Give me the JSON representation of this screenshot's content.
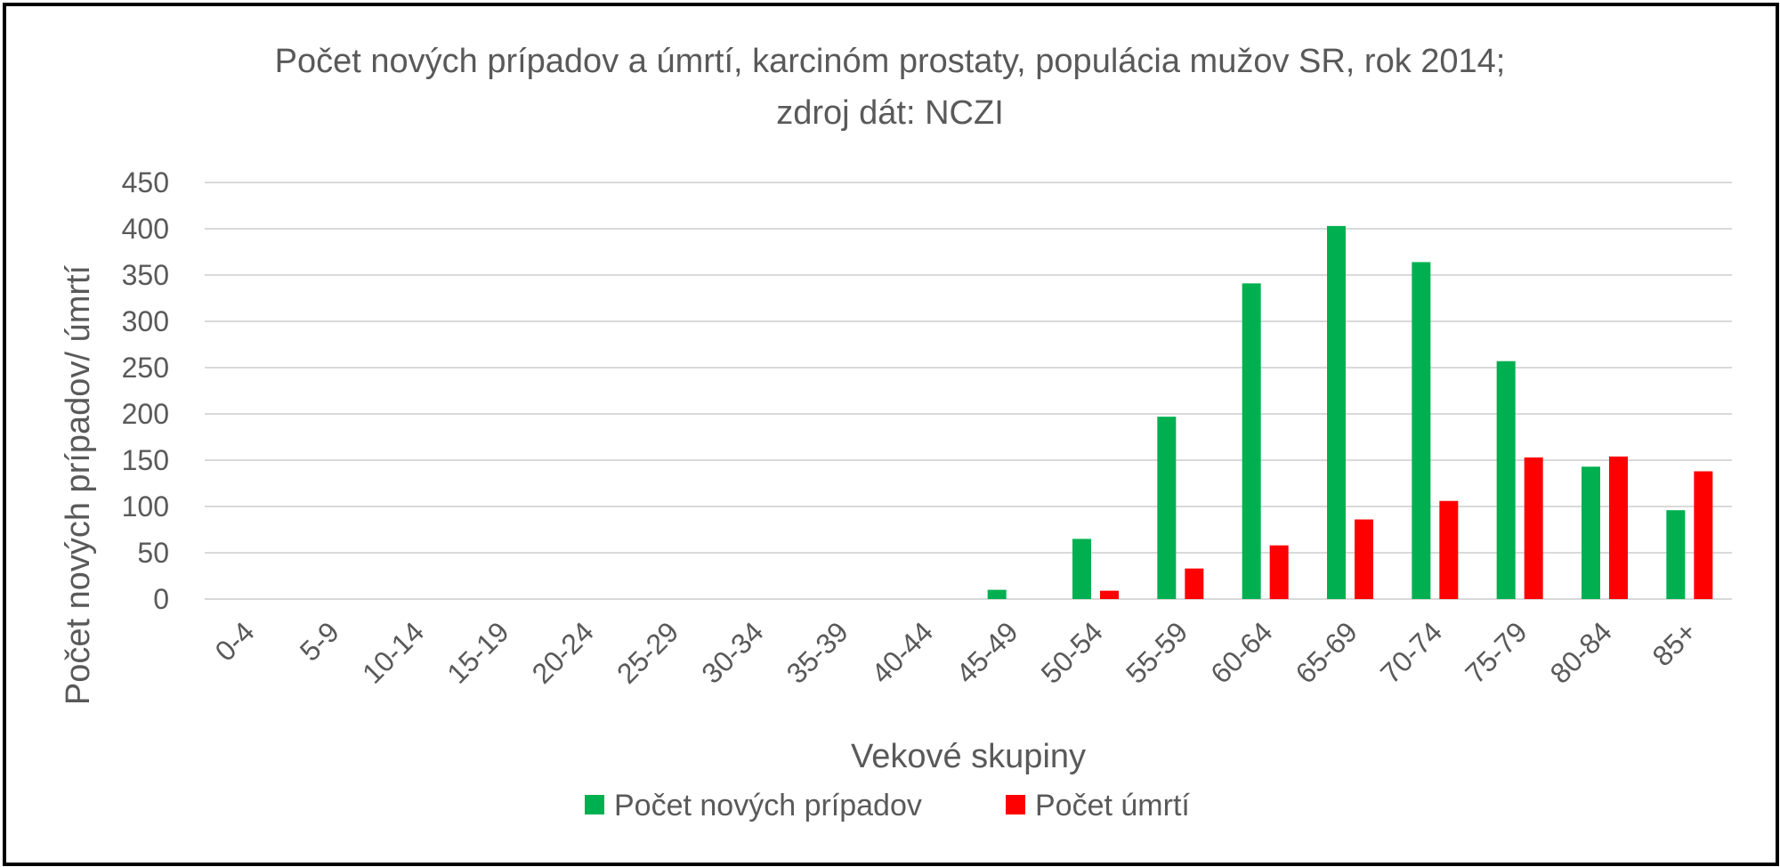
{
  "chart_data": {
    "type": "bar",
    "title_line1": "Počet nových prípadov a úmrtí, karcinóm prostaty, populácia mužov SR, rok 2014;",
    "title_line2": "zdroj dát: NCZI",
    "xlabel": "Vekové skupiny",
    "ylabel": "Počet nových prípadov/ úmrtí",
    "ylim": [
      0,
      450
    ],
    "yticks": [
      0,
      50,
      100,
      150,
      200,
      250,
      300,
      350,
      400,
      450
    ],
    "grid": true,
    "legend_position": "bottom",
    "categories": [
      "0-4",
      "5-9",
      "10-14",
      "15-19",
      "20-24",
      "25-29",
      "30-34",
      "35-39",
      "40-44",
      "45-49",
      "50-54",
      "55-59",
      "60-64",
      "65-69",
      "70-74",
      "75-79",
      "80-84",
      "85+"
    ],
    "series": [
      {
        "name": "Počet nových prípadov",
        "color": "#00B050",
        "values": [
          0,
          0,
          0,
          0,
          0,
          0,
          0,
          0,
          0,
          10,
          65,
          197,
          341,
          403,
          364,
          257,
          143,
          96
        ]
      },
      {
        "name": "Počet úmrtí",
        "color": "#FF0000",
        "values": [
          0,
          0,
          0,
          0,
          0,
          0,
          0,
          0,
          0,
          0,
          9,
          33,
          58,
          86,
          106,
          153,
          154,
          138
        ]
      }
    ]
  }
}
